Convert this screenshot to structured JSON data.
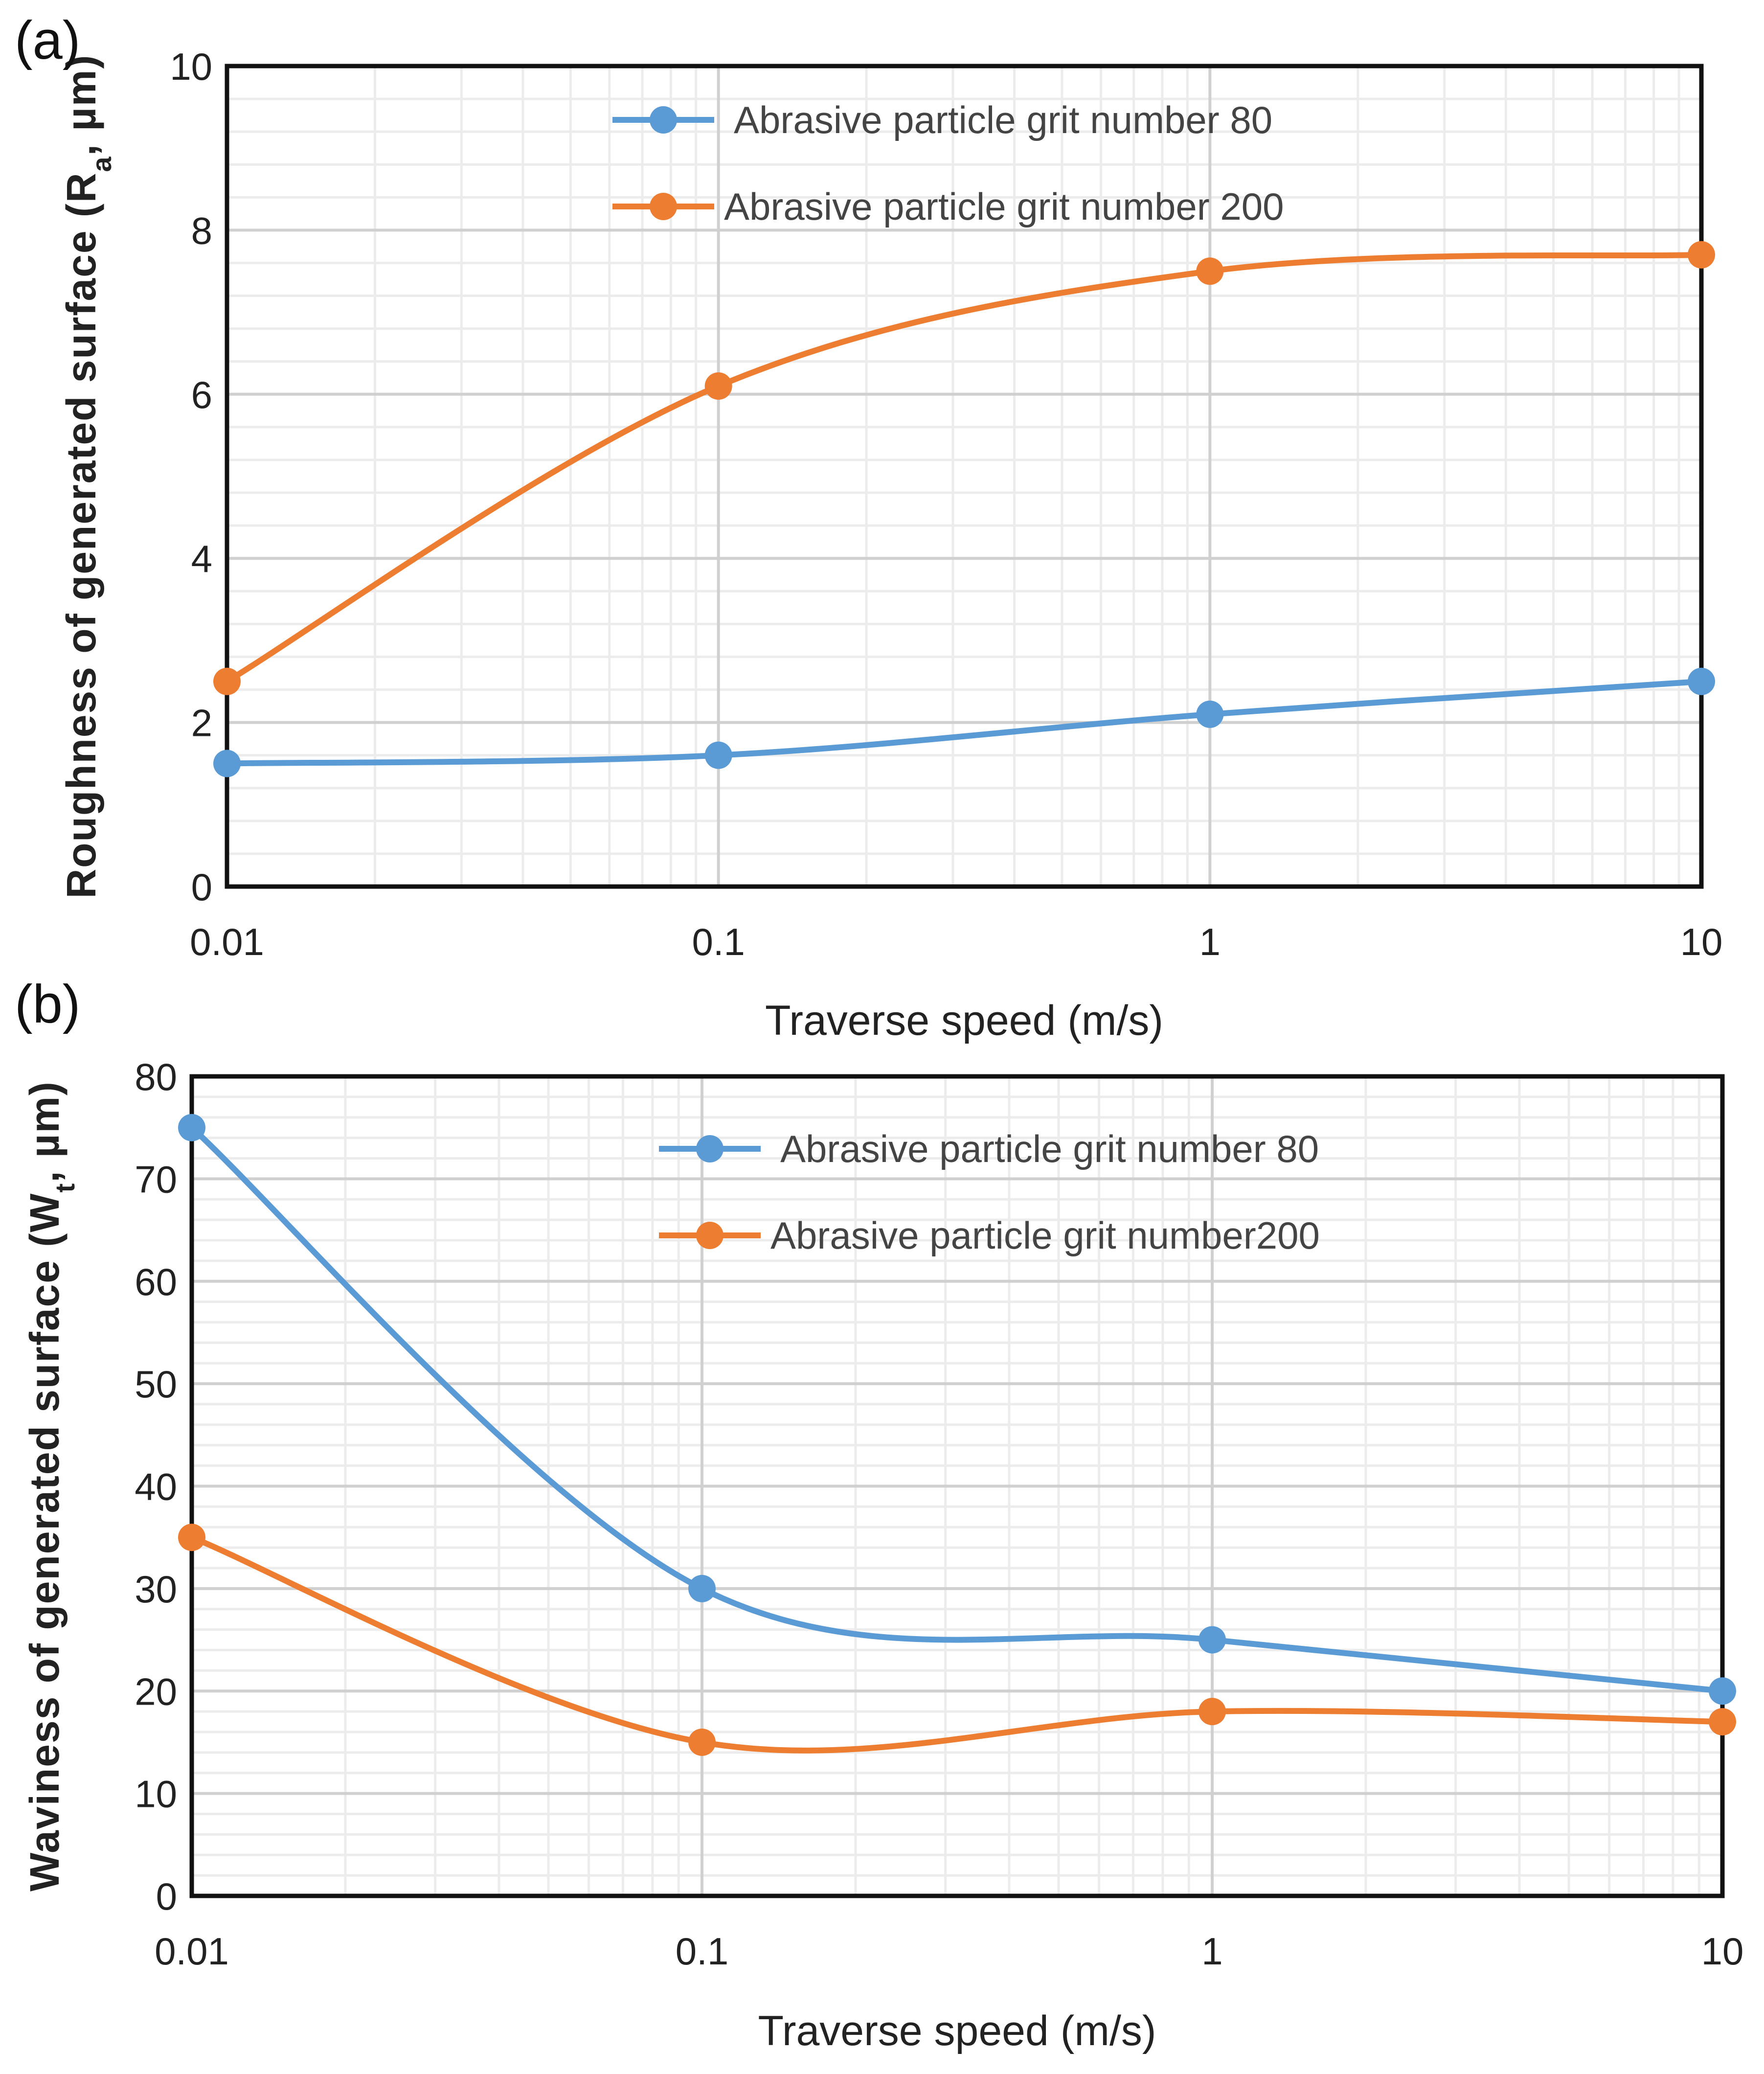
{
  "chart_data": [
    {
      "type": "line",
      "panel_label": "(a)",
      "xlabel": "Traverse speed (m/s)",
      "ylabel_main": "Roughness of generated surface (R",
      "ylabel_sub": "a",
      "ylabel_tail": ", µm)",
      "xscale": "log",
      "xlim": [
        0.01,
        10
      ],
      "ylim": [
        0,
        10
      ],
      "x": [
        0.01,
        0.1,
        1,
        10
      ],
      "xticks": [
        "0.01",
        "0.1",
        "1",
        "10"
      ],
      "yticks": [
        "0",
        "2",
        "4",
        "6",
        "8",
        "10"
      ],
      "ytick_values": [
        0,
        2,
        4,
        6,
        8,
        10
      ],
      "yminor_step": 0.4,
      "legend_position": "top-center",
      "grid": true,
      "series": [
        {
          "name": "Abrasive particle grit number 80",
          "color": "#5B9BD5",
          "values": [
            1.5,
            1.6,
            2.1,
            2.5
          ]
        },
        {
          "name": "Abrasive particle grit number 200",
          "color": "#ED7D31",
          "values": [
            2.5,
            6.1,
            7.5,
            7.7
          ]
        }
      ]
    },
    {
      "type": "line",
      "panel_label": "(b)",
      "xlabel": "Traverse speed (m/s)",
      "ylabel_main": "Waviness of generated surface (W",
      "ylabel_sub": "t",
      "ylabel_tail": ", µm)",
      "xscale": "log",
      "xlim": [
        0.01,
        10
      ],
      "ylim": [
        0,
        80
      ],
      "x": [
        0.01,
        0.1,
        1,
        10
      ],
      "xticks": [
        "0.01",
        "0.1",
        "1",
        "10"
      ],
      "yticks": [
        "0",
        "10",
        "20",
        "30",
        "40",
        "50",
        "60",
        "70",
        "80"
      ],
      "ytick_values": [
        0,
        10,
        20,
        30,
        40,
        50,
        60,
        70,
        80
      ],
      "yminor_step": 2,
      "legend_position": "top-center",
      "grid": true,
      "series": [
        {
          "name": "Abrasive particle grit number 80",
          "color": "#5B9BD5",
          "values": [
            75,
            30,
            25,
            20
          ]
        },
        {
          "name": "Abrasive particle grit number200",
          "color": "#ED7D31",
          "values": [
            35,
            15,
            18,
            17
          ]
        }
      ]
    }
  ]
}
